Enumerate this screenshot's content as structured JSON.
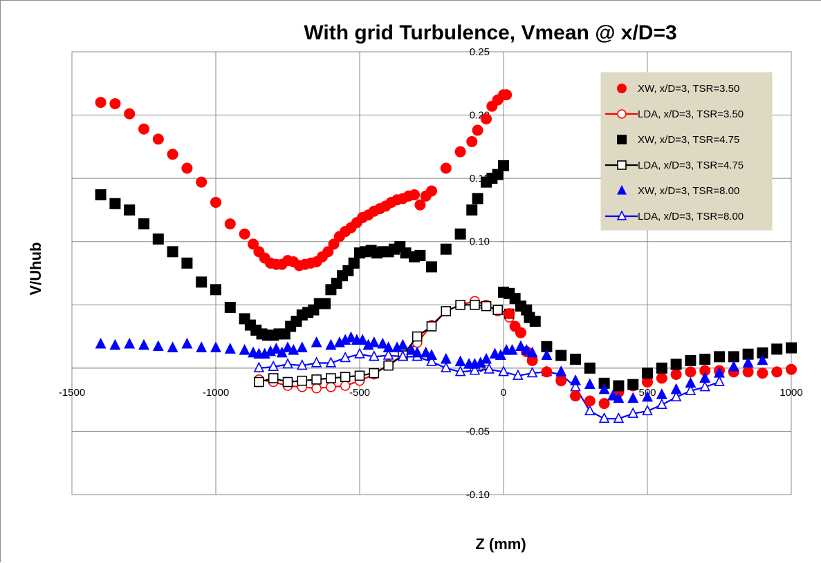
{
  "chart_data": {
    "type": "scatter",
    "title": "With grid Turbulence, Vmean @ x/D=3",
    "xlabel": "Z (mm)",
    "ylabel": "V/Uhub",
    "xlim": [
      -1500,
      1000
    ],
    "ylim": [
      -0.1,
      0.25
    ],
    "x_ticks": [
      -1500,
      -1000,
      -500,
      0,
      500,
      1000
    ],
    "y_ticks": [
      -0.1,
      -0.05,
      0.0,
      0.05,
      0.1,
      0.15,
      0.2,
      0.25
    ],
    "x_tick_labels": [
      "-1500",
      "-1000",
      "-500",
      "0",
      "500",
      "1000"
    ],
    "y_tick_labels": [
      "-0.10",
      "-0.05",
      "0.00",
      "0.05",
      "0.10",
      "0.15",
      "0.20",
      "0.25"
    ],
    "grid": true,
    "legend_position": "top-right",
    "series": [
      {
        "name": "XW, x/D=3, TSR=3.50",
        "color": "#ff0000",
        "marker": "circle",
        "filled": true,
        "line": false,
        "points": [
          [
            -1400,
            0.21
          ],
          [
            -1350,
            0.209
          ],
          [
            -1300,
            0.201
          ],
          [
            -1250,
            0.189
          ],
          [
            -1200,
            0.181
          ],
          [
            -1150,
            0.169
          ],
          [
            -1100,
            0.158
          ],
          [
            -1050,
            0.147
          ],
          [
            -1000,
            0.131
          ],
          [
            -950,
            0.114
          ],
          [
            -900,
            0.106
          ],
          [
            -870,
            0.098
          ],
          [
            -850,
            0.092
          ],
          [
            -830,
            0.087
          ],
          [
            -810,
            0.083
          ],
          [
            -790,
            0.082
          ],
          [
            -770,
            0.082
          ],
          [
            -750,
            0.085
          ],
          [
            -730,
            0.084
          ],
          [
            -710,
            0.081
          ],
          [
            -690,
            0.082
          ],
          [
            -670,
            0.083
          ],
          [
            -650,
            0.084
          ],
          [
            -630,
            0.088
          ],
          [
            -610,
            0.092
          ],
          [
            -590,
            0.098
          ],
          [
            -570,
            0.104
          ],
          [
            -550,
            0.108
          ],
          [
            -530,
            0.111
          ],
          [
            -510,
            0.115
          ],
          [
            -490,
            0.119
          ],
          [
            -470,
            0.121
          ],
          [
            -450,
            0.124
          ],
          [
            -430,
            0.126
          ],
          [
            -410,
            0.128
          ],
          [
            -390,
            0.131
          ],
          [
            -370,
            0.133
          ],
          [
            -350,
            0.134
          ],
          [
            -330,
            0.136
          ],
          [
            -310,
            0.137
          ],
          [
            -290,
            0.129
          ],
          [
            -270,
            0.136
          ],
          [
            -250,
            0.14
          ],
          [
            -200,
            0.158
          ],
          [
            -150,
            0.171
          ],
          [
            -110,
            0.179
          ],
          [
            -90,
            0.188
          ],
          [
            -60,
            0.197
          ],
          [
            -40,
            0.207
          ],
          [
            -20,
            0.212
          ],
          [
            0,
            0.216
          ],
          [
            10,
            0.216
          ],
          [
            20,
            0.043
          ],
          [
            40,
            0.033
          ],
          [
            60,
            0.028
          ],
          [
            80,
            0.013
          ],
          [
            100,
            0.006
          ],
          [
            150,
            -0.003
          ],
          [
            200,
            -0.01
          ],
          [
            250,
            -0.022
          ],
          [
            300,
            -0.026
          ],
          [
            350,
            -0.028
          ],
          [
            400,
            -0.019
          ],
          [
            450,
            -0.014
          ],
          [
            500,
            -0.011
          ],
          [
            550,
            -0.008
          ],
          [
            600,
            -0.005
          ],
          [
            650,
            -0.003
          ],
          [
            700,
            -0.002
          ],
          [
            750,
            -0.002
          ],
          [
            800,
            -0.003
          ],
          [
            850,
            -0.003
          ],
          [
            900,
            -0.004
          ],
          [
            950,
            -0.003
          ],
          [
            1000,
            -0.001
          ]
        ]
      },
      {
        "name": "LDA, x/D=3, TSR=3.50",
        "color": "#ff0000",
        "marker": "circle",
        "filled": false,
        "line": true,
        "points": [
          [
            -850,
            -0.009
          ],
          [
            -800,
            -0.011
          ],
          [
            -750,
            -0.014
          ],
          [
            -700,
            -0.015
          ],
          [
            -650,
            -0.016
          ],
          [
            -600,
            -0.015
          ],
          [
            -550,
            -0.014
          ],
          [
            -500,
            -0.01
          ],
          [
            -450,
            -0.005
          ],
          [
            -400,
            0.003
          ],
          [
            -350,
            0.01
          ],
          [
            -300,
            0.02
          ],
          [
            -250,
            0.034
          ],
          [
            -200,
            0.045
          ],
          [
            -150,
            0.05
          ],
          [
            -100,
            0.053
          ],
          [
            -60,
            0.05
          ],
          [
            -20,
            0.045
          ],
          [
            20,
            0.04
          ]
        ]
      },
      {
        "name": "XW, x/D=3, TSR=4.75",
        "color": "#000000",
        "marker": "square",
        "filled": true,
        "line": false,
        "points": [
          [
            -1400,
            0.137
          ],
          [
            -1350,
            0.13
          ],
          [
            -1300,
            0.125
          ],
          [
            -1250,
            0.114
          ],
          [
            -1200,
            0.102
          ],
          [
            -1150,
            0.092
          ],
          [
            -1100,
            0.083
          ],
          [
            -1050,
            0.068
          ],
          [
            -1000,
            0.062
          ],
          [
            -950,
            0.048
          ],
          [
            -900,
            0.039
          ],
          [
            -880,
            0.034
          ],
          [
            -860,
            0.03
          ],
          [
            -840,
            0.027
          ],
          [
            -820,
            0.026
          ],
          [
            -800,
            0.026
          ],
          [
            -780,
            0.027
          ],
          [
            -760,
            0.027
          ],
          [
            -740,
            0.033
          ],
          [
            -720,
            0.037
          ],
          [
            -700,
            0.042
          ],
          [
            -680,
            0.044
          ],
          [
            -660,
            0.046
          ],
          [
            -640,
            0.051
          ],
          [
            -620,
            0.051
          ],
          [
            -600,
            0.062
          ],
          [
            -580,
            0.067
          ],
          [
            -560,
            0.073
          ],
          [
            -540,
            0.077
          ],
          [
            -520,
            0.083
          ],
          [
            -500,
            0.091
          ],
          [
            -480,
            0.092
          ],
          [
            -460,
            0.093
          ],
          [
            -440,
            0.091
          ],
          [
            -420,
            0.092
          ],
          [
            -400,
            0.092
          ],
          [
            -380,
            0.094
          ],
          [
            -360,
            0.096
          ],
          [
            -340,
            0.091
          ],
          [
            -310,
            0.088
          ],
          [
            -290,
            0.089
          ],
          [
            -250,
            0.08
          ],
          [
            -200,
            0.094
          ],
          [
            -150,
            0.106
          ],
          [
            -110,
            0.125
          ],
          [
            -90,
            0.134
          ],
          [
            -60,
            0.147
          ],
          [
            -40,
            0.15
          ],
          [
            -20,
            0.153
          ],
          [
            0,
            0.16
          ],
          [
            0,
            0.06
          ],
          [
            20,
            0.059
          ],
          [
            40,
            0.055
          ],
          [
            60,
            0.049
          ],
          [
            80,
            0.046
          ],
          [
            90,
            0.04
          ],
          [
            110,
            0.037
          ],
          [
            150,
            0.017
          ],
          [
            200,
            0.01
          ],
          [
            250,
            0.007
          ],
          [
            300,
            0.0
          ],
          [
            350,
            -0.012
          ],
          [
            400,
            -0.014
          ],
          [
            450,
            -0.013
          ],
          [
            500,
            -0.004
          ],
          [
            550,
            0.0
          ],
          [
            600,
            0.003
          ],
          [
            650,
            0.006
          ],
          [
            700,
            0.007
          ],
          [
            750,
            0.009
          ],
          [
            800,
            0.009
          ],
          [
            850,
            0.011
          ],
          [
            900,
            0.012
          ],
          [
            950,
            0.015
          ],
          [
            1000,
            0.016
          ]
        ]
      },
      {
        "name": "LDA, x/D=3, TSR=4.75",
        "color": "#000000",
        "marker": "square",
        "filled": false,
        "line": true,
        "points": [
          [
            -850,
            -0.011
          ],
          [
            -800,
            -0.008
          ],
          [
            -750,
            -0.011
          ],
          [
            -700,
            -0.01
          ],
          [
            -650,
            -0.009
          ],
          [
            -600,
            -0.008
          ],
          [
            -550,
            -0.007
          ],
          [
            -500,
            -0.006
          ],
          [
            -450,
            -0.004
          ],
          [
            -400,
            0.002
          ],
          [
            -350,
            0.01
          ],
          [
            -300,
            0.025
          ],
          [
            -250,
            0.033
          ],
          [
            -200,
            0.045
          ],
          [
            -150,
            0.05
          ],
          [
            -100,
            0.05
          ],
          [
            -60,
            0.049
          ],
          [
            -20,
            0.046
          ],
          [
            20,
            0.043
          ]
        ]
      },
      {
        "name": "XW, x/D=3, TSR=8.00",
        "color": "#0000ff",
        "marker": "triangle",
        "filled": true,
        "line": false,
        "points": [
          [
            -1400,
            0.019
          ],
          [
            -1350,
            0.018
          ],
          [
            -1300,
            0.019
          ],
          [
            -1250,
            0.018
          ],
          [
            -1200,
            0.017
          ],
          [
            -1150,
            0.016
          ],
          [
            -1100,
            0.019
          ],
          [
            -1050,
            0.016
          ],
          [
            -1000,
            0.016
          ],
          [
            -950,
            0.015
          ],
          [
            -900,
            0.014
          ],
          [
            -870,
            0.012
          ],
          [
            -850,
            0.011
          ],
          [
            -830,
            0.011
          ],
          [
            -810,
            0.013
          ],
          [
            -790,
            0.015
          ],
          [
            -770,
            0.012
          ],
          [
            -750,
            0.016
          ],
          [
            -730,
            0.014
          ],
          [
            -700,
            0.016
          ],
          [
            -650,
            0.02
          ],
          [
            -600,
            0.018
          ],
          [
            -570,
            0.02
          ],
          [
            -550,
            0.022
          ],
          [
            -530,
            0.024
          ],
          [
            -510,
            0.022
          ],
          [
            -490,
            0.022
          ],
          [
            -470,
            0.018
          ],
          [
            -450,
            0.02
          ],
          [
            -420,
            0.019
          ],
          [
            -400,
            0.016
          ],
          [
            -370,
            0.016
          ],
          [
            -350,
            0.018
          ],
          [
            -320,
            0.014
          ],
          [
            -300,
            0.012
          ],
          [
            -270,
            0.012
          ],
          [
            -250,
            0.01
          ],
          [
            -200,
            0.007
          ],
          [
            -150,
            0.005
          ],
          [
            -120,
            0.003
          ],
          [
            -100,
            0.003
          ],
          [
            -80,
            0.004
          ],
          [
            -60,
            0.007
          ],
          [
            -30,
            0.011
          ],
          [
            -10,
            0.01
          ],
          [
            10,
            0.014
          ],
          [
            30,
            0.014
          ],
          [
            60,
            0.017
          ],
          [
            80,
            0.014
          ],
          [
            100,
            0.012
          ],
          [
            150,
            0.01
          ],
          [
            200,
            -0.003
          ],
          [
            250,
            -0.01
          ],
          [
            300,
            -0.013
          ],
          [
            350,
            -0.017
          ],
          [
            380,
            -0.022
          ],
          [
            400,
            -0.024
          ],
          [
            450,
            -0.024
          ],
          [
            500,
            -0.023
          ],
          [
            550,
            -0.021
          ],
          [
            600,
            -0.017
          ],
          [
            650,
            -0.012
          ],
          [
            700,
            -0.008
          ],
          [
            750,
            -0.004
          ],
          [
            800,
            0.001
          ],
          [
            850,
            0.004
          ],
          [
            900,
            0.006
          ]
        ]
      },
      {
        "name": "LDA, x/D=3, TSR=8.00",
        "color": "#0000ff",
        "marker": "triangle",
        "filled": false,
        "line": true,
        "points": [
          [
            -850,
            0.0
          ],
          [
            -800,
            0.001
          ],
          [
            -750,
            0.003
          ],
          [
            -700,
            0.002
          ],
          [
            -650,
            0.004
          ],
          [
            -600,
            0.004
          ],
          [
            -550,
            0.008
          ],
          [
            -500,
            0.011
          ],
          [
            -450,
            0.009
          ],
          [
            -400,
            0.01
          ],
          [
            -350,
            0.009
          ],
          [
            -300,
            0.009
          ],
          [
            -250,
            0.005
          ],
          [
            -200,
            0.0
          ],
          [
            -150,
            -0.003
          ],
          [
            -100,
            -0.002
          ],
          [
            -50,
            -0.001
          ],
          [
            0,
            -0.003
          ],
          [
            50,
            -0.006
          ],
          [
            100,
            -0.004
          ],
          [
            150,
            -0.003
          ],
          [
            200,
            -0.005
          ],
          [
            250,
            -0.015
          ],
          [
            300,
            -0.034
          ],
          [
            350,
            -0.04
          ],
          [
            400,
            -0.04
          ],
          [
            450,
            -0.036
          ],
          [
            500,
            -0.034
          ],
          [
            550,
            -0.029
          ],
          [
            600,
            -0.023
          ],
          [
            650,
            -0.018
          ],
          [
            700,
            -0.015
          ],
          [
            750,
            -0.011
          ]
        ]
      }
    ]
  }
}
